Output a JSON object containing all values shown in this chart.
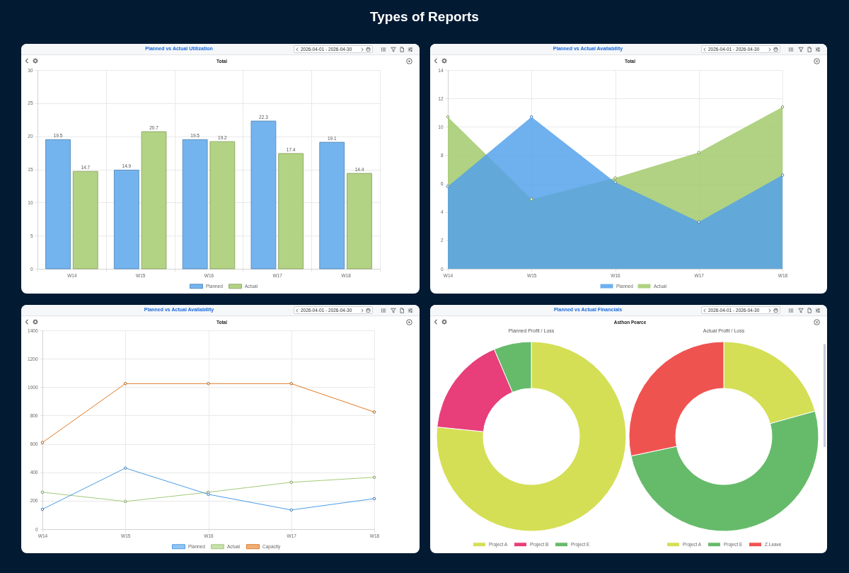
{
  "chart_data": [
    {
      "type": "bar",
      "title": "Planned vs Actual Utilization",
      "subtitle": "Total",
      "annotations": [
        "2026-04-01 - 2026-04-30",
        "Types of Reports"
      ],
      "categories": [
        "W14",
        "W15",
        "W16",
        "W17",
        "W18"
      ],
      "series": [
        {
          "name": "Planned",
          "color": "#74b4ee",
          "values": [
            19.5,
            14.9,
            19.5,
            22.3,
            19.1
          ]
        },
        {
          "name": "Actual",
          "color": "#b3d384",
          "values": [
            14.7,
            20.7,
            19.2,
            17.4,
            14.4
          ]
        }
      ],
      "ylim": [
        0,
        30
      ],
      "yticks": [
        0,
        5,
        10,
        15,
        20,
        25,
        30
      ],
      "grid": true,
      "legend": "bottom",
      "data_labels": true
    },
    {
      "type": "area",
      "title": "Planned vs Actual Availability",
      "subtitle": "Total",
      "annotations": [
        "2026-04-01 - 2026-04-30"
      ],
      "categories": [
        "W14",
        "W15",
        "W16",
        "W17",
        "W18"
      ],
      "series": [
        {
          "name": "Planned",
          "color": "#52a0eb",
          "values": [
            5.8,
            10.7,
            6.1,
            3.3,
            6.6
          ]
        },
        {
          "name": "Actual",
          "color": "#a0c969",
          "values": [
            10.7,
            4.9,
            6.4,
            8.2,
            11.4
          ]
        }
      ],
      "ylim": [
        0,
        14
      ],
      "yticks": [
        0,
        2,
        4,
        6,
        8,
        10,
        12,
        14
      ],
      "grid": true,
      "legend": "bottom",
      "marker": "circle"
    },
    {
      "type": "line",
      "title": "Planned vs Actual Availability",
      "subtitle": "Total",
      "annotations": [
        "2026-04-01 - 2026-04-30"
      ],
      "categories": [
        "W14",
        "W15",
        "W16",
        "W17",
        "W18"
      ],
      "series": [
        {
          "name": "Planned",
          "color": "#4b9ce8",
          "values": [
            140,
            430,
            245,
            135,
            215
          ]
        },
        {
          "name": "Actual",
          "color": "#a3cb78",
          "values": [
            260,
            195,
            260,
            330,
            365
          ]
        },
        {
          "name": "Capacity",
          "color": "#e27a22",
          "values": [
            610,
            1025,
            1025,
            1025,
            825
          ]
        }
      ],
      "ylim": [
        0,
        1400
      ],
      "yticks": [
        0,
        200,
        400,
        600,
        800,
        1000,
        1200,
        1400
      ],
      "grid": true,
      "legend": "bottom",
      "marker": "circle"
    },
    {
      "type": "donut",
      "title": "Planned vs Actual Financials",
      "subtitle": "Asthon Pearce",
      "annotations": [
        "2026-04-01 - 2026-04-30",
        "Planned Profit / Loss"
      ],
      "categories": [
        "Project A",
        "Project B",
        "Project E"
      ],
      "values": [
        76.6,
        17.0,
        6.4
      ],
      "colors": [
        "#d4df55",
        "#e83e7a",
        "#66bb6a"
      ],
      "legend": "bottom"
    },
    {
      "type": "donut",
      "title": "Actual Profit / Loss",
      "categories": [
        "Project A",
        "Project E",
        "Z.Leave"
      ],
      "values": [
        20.7,
        51.0,
        28.3
      ],
      "colors": [
        "#d4df55",
        "#66bb6a",
        "#ef5350"
      ],
      "legend": "bottom"
    }
  ]
}
